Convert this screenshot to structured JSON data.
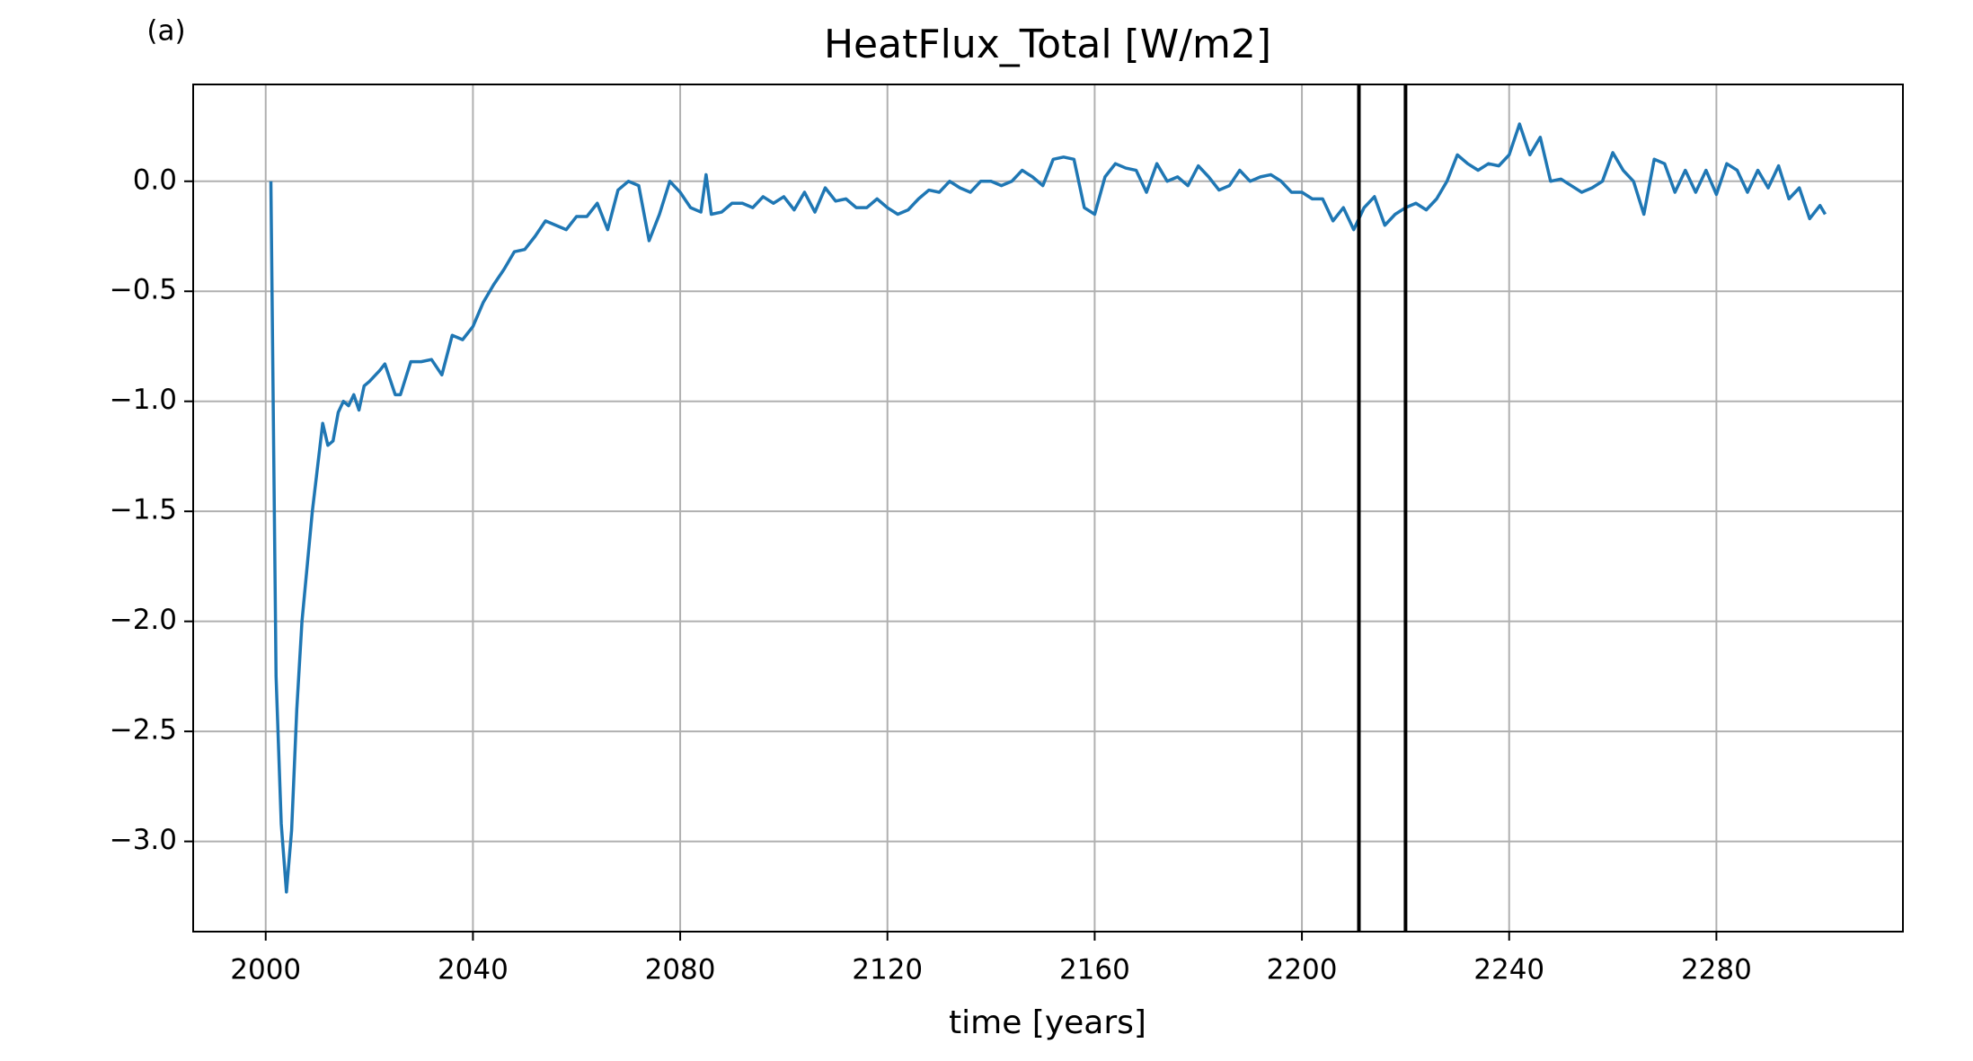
{
  "chart_data": {
    "type": "line",
    "title": "HeatFlux_Total [W/m2]",
    "annotation": "(a)",
    "xlabel": "time [years]",
    "x": [
      2001,
      2002,
      2003,
      2004,
      2005,
      2006,
      2007,
      2008,
      2009,
      2010,
      2011,
      2012,
      2013,
      2014,
      2015,
      2016,
      2017,
      2018,
      2019,
      2020,
      2022,
      2023,
      2025,
      2026,
      2028,
      2030,
      2032,
      2034,
      2036,
      2038,
      2040,
      2042,
      2044,
      2046,
      2048,
      2050,
      2052,
      2054,
      2056,
      2058,
      2060,
      2062,
      2064,
      2066,
      2068,
      2070,
      2072,
      2074,
      2076,
      2078,
      2080,
      2082,
      2084,
      2085,
      2086,
      2088,
      2090,
      2092,
      2094,
      2096,
      2098,
      2100,
      2102,
      2104,
      2106,
      2108,
      2110,
      2112,
      2114,
      2116,
      2118,
      2120,
      2122,
      2124,
      2126,
      2128,
      2130,
      2132,
      2134,
      2136,
      2138,
      2140,
      2142,
      2144,
      2146,
      2148,
      2150,
      2152,
      2154,
      2156,
      2158,
      2160,
      2162,
      2164,
      2166,
      2168,
      2170,
      2172,
      2174,
      2176,
      2178,
      2180,
      2182,
      2184,
      2186,
      2188,
      2190,
      2192,
      2194,
      2196,
      2198,
      2200,
      2202,
      2204,
      2206,
      2208,
      2210,
      2212,
      2214,
      2216,
      2218,
      2220,
      2222,
      2224,
      2226,
      2228,
      2230,
      2232,
      2234,
      2236,
      2238,
      2240,
      2242,
      2244,
      2246,
      2248,
      2250,
      2252,
      2254,
      2256,
      2258,
      2260,
      2262,
      2264,
      2266,
      2268,
      2270,
      2272,
      2274,
      2276,
      2278,
      2280,
      2282,
      2284,
      2286,
      2288,
      2290,
      2292,
      2294,
      2296,
      2298,
      2300,
      2301
    ],
    "series": [
      {
        "name": "HeatFlux_Total",
        "color": "#1f77b4",
        "values": [
          0.0,
          -2.25,
          -2.92,
          -3.23,
          -2.95,
          -2.4,
          -2.0,
          -1.75,
          -1.5,
          -1.3,
          -1.1,
          -1.2,
          -1.18,
          -1.05,
          -1.0,
          -1.02,
          -0.97,
          -1.04,
          -0.93,
          -0.91,
          -0.86,
          -0.83,
          -0.97,
          -0.97,
          -0.82,
          -0.82,
          -0.81,
          -0.88,
          -0.7,
          -0.72,
          -0.66,
          -0.55,
          -0.47,
          -0.4,
          -0.32,
          -0.31,
          -0.25,
          -0.18,
          -0.2,
          -0.22,
          -0.16,
          -0.16,
          -0.1,
          -0.22,
          -0.04,
          0.0,
          -0.02,
          -0.27,
          -0.15,
          0.0,
          -0.05,
          -0.12,
          -0.14,
          0.03,
          -0.15,
          -0.14,
          -0.1,
          -0.1,
          -0.12,
          -0.07,
          -0.1,
          -0.07,
          -0.13,
          -0.05,
          -0.14,
          -0.03,
          -0.09,
          -0.08,
          -0.12,
          -0.12,
          -0.08,
          -0.12,
          -0.15,
          -0.13,
          -0.08,
          -0.04,
          -0.05,
          0.0,
          -0.03,
          -0.05,
          0.0,
          0.0,
          -0.02,
          0.0,
          0.05,
          0.02,
          -0.02,
          0.1,
          0.11,
          0.1,
          -0.12,
          -0.15,
          0.02,
          0.08,
          0.06,
          0.05,
          -0.05,
          0.08,
          0.0,
          0.02,
          -0.02,
          0.07,
          0.02,
          -0.04,
          -0.02,
          0.05,
          0.0,
          0.02,
          0.03,
          0.0,
          -0.05,
          -0.05,
          -0.08,
          -0.08,
          -0.18,
          -0.12,
          -0.22,
          -0.12,
          -0.07,
          -0.2,
          -0.15,
          -0.12,
          -0.1,
          -0.13,
          -0.08,
          0.0,
          0.12,
          0.08,
          0.05,
          0.08,
          0.07,
          0.12,
          0.26,
          0.12,
          0.2,
          0.0,
          0.01,
          -0.02,
          -0.05,
          -0.03,
          0.0,
          0.13,
          0.05,
          0.0,
          -0.15,
          0.1,
          0.08,
          -0.05,
          0.05,
          -0.05,
          0.05,
          -0.06,
          0.08,
          0.05,
          -0.05,
          0.05,
          -0.03,
          0.07,
          -0.08,
          -0.03,
          -0.17,
          -0.11,
          -0.15
        ]
      }
    ],
    "vlines": [
      2211,
      2220
    ],
    "vline_color": "#000000",
    "xlim": [
      1986,
      2316
    ],
    "ylim": [
      -3.41,
      0.44
    ],
    "xticks": [
      2000,
      2040,
      2080,
      2120,
      2160,
      2200,
      2240,
      2280
    ],
    "yticks": [
      {
        "value": 0.0,
        "label": "0.0"
      },
      {
        "value": -0.5,
        "label": "−0.5"
      },
      {
        "value": -1.0,
        "label": "−1.0"
      },
      {
        "value": -1.5,
        "label": "−1.5"
      },
      {
        "value": -2.0,
        "label": "−2.0"
      },
      {
        "value": -2.5,
        "label": "−2.5"
      },
      {
        "value": -3.0,
        "label": "−3.0"
      }
    ],
    "grid": true
  }
}
